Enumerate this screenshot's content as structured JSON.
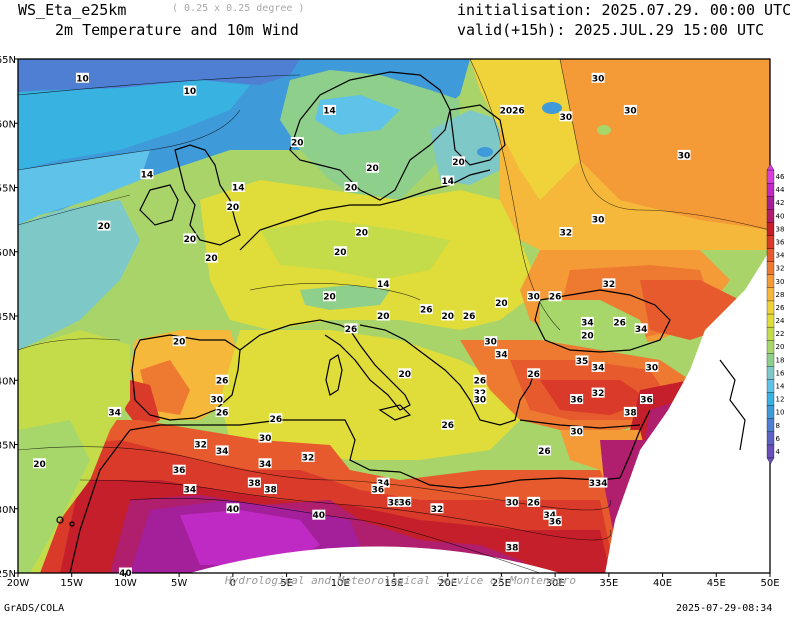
{
  "header": {
    "model": "WS_Eta_e25km",
    "resolution": "( 0.25 x 0.25 degree )",
    "variable": "2m Temperature and 10m Wind",
    "initialisation": "initialisation: 2025.07.29. 00:00 UTC",
    "valid": "valid(+15h): 2025.JUL.29 15:00 UTC"
  },
  "footer": {
    "software": "GrADS/COLA",
    "timestamp": "2025-07-29-08:34",
    "credit": "Hydrological and Meteorological Service of Montenegro"
  },
  "map": {
    "lon_ticks": [
      "20W",
      "15W",
      "10W",
      "5W",
      "0",
      "5E",
      "10E",
      "15E",
      "20E",
      "25E",
      "30E",
      "35E",
      "40E",
      "45E",
      "50E"
    ],
    "lat_ticks": [
      "25N",
      "30N",
      "35N",
      "40N",
      "45N",
      "50N",
      "55N",
      "60N",
      "65N"
    ],
    "contour_labels": [
      {
        "v": "10",
        "lon": -14,
        "lat": 63.5
      },
      {
        "v": "10",
        "lon": -4,
        "lat": 62.5
      },
      {
        "v": "14",
        "lon": -8,
        "lat": 56
      },
      {
        "v": "14",
        "lon": 0.5,
        "lat": 55
      },
      {
        "v": "20",
        "lon": -12,
        "lat": 52
      },
      {
        "v": "20",
        "lon": 0,
        "lat": 53.5
      },
      {
        "v": "20",
        "lon": -4,
        "lat": 51
      },
      {
        "v": "20",
        "lon": -2,
        "lat": 49.5
      },
      {
        "v": "14",
        "lon": 9,
        "lat": 61
      },
      {
        "v": "20",
        "lon": 6,
        "lat": 58.5
      },
      {
        "v": "20",
        "lon": 13,
        "lat": 56.5
      },
      {
        "v": "20",
        "lon": 11,
        "lat": 55
      },
      {
        "v": "14",
        "lon": 20,
        "lat": 55.5
      },
      {
        "v": "20",
        "lon": 21,
        "lat": 57
      },
      {
        "v": "2026",
        "lon": 26,
        "lat": 61
      },
      {
        "v": "30",
        "lon": 31,
        "lat": 60.5
      },
      {
        "v": "30",
        "lon": 34,
        "lat": 63.5
      },
      {
        "v": "30",
        "lon": 37,
        "lat": 61
      },
      {
        "v": "30",
        "lon": 42,
        "lat": 57.5
      },
      {
        "v": "30",
        "lon": 34,
        "lat": 52.5
      },
      {
        "v": "32",
        "lon": 31,
        "lat": 51.5
      },
      {
        "v": "20",
        "lon": 12,
        "lat": 51.5
      },
      {
        "v": "20",
        "lon": 10,
        "lat": 50
      },
      {
        "v": "14",
        "lon": 14,
        "lat": 47.5
      },
      {
        "v": "20",
        "lon": 9,
        "lat": 46.5
      },
      {
        "v": "20",
        "lon": 14,
        "lat": 45
      },
      {
        "v": "26",
        "lon": 11,
        "lat": 44
      },
      {
        "v": "26",
        "lon": 18,
        "lat": 45.5
      },
      {
        "v": "20",
        "lon": 20,
        "lat": 45
      },
      {
        "v": "26",
        "lon": 22,
        "lat": 45
      },
      {
        "v": "20",
        "lon": 25,
        "lat": 46
      },
      {
        "v": "30",
        "lon": 28,
        "lat": 46.5
      },
      {
        "v": "26",
        "lon": 30,
        "lat": 46.5
      },
      {
        "v": "32",
        "lon": 35,
        "lat": 47.5
      },
      {
        "v": "34",
        "lon": 33,
        "lat": 44.5
      },
      {
        "v": "20",
        "lon": 33,
        "lat": 43.5
      },
      {
        "v": "26",
        "lon": 36,
        "lat": 44.5
      },
      {
        "v": "34",
        "lon": 38,
        "lat": 44
      },
      {
        "v": "30",
        "lon": 24,
        "lat": 43
      },
      {
        "v": "34",
        "lon": 25,
        "lat": 42
      },
      {
        "v": "35",
        "lon": 32.5,
        "lat": 41.5
      },
      {
        "v": "34",
        "lon": 34,
        "lat": 41
      },
      {
        "v": "30",
        "lon": 39,
        "lat": 41
      },
      {
        "v": "26",
        "lon": 28,
        "lat": 40.5
      },
      {
        "v": "26",
        "lon": 23,
        "lat": 40
      },
      {
        "v": "32",
        "lon": 23,
        "lat": 39
      },
      {
        "v": "30",
        "lon": 23,
        "lat": 38.5
      },
      {
        "v": "36",
        "lon": 32,
        "lat": 38.5
      },
      {
        "v": "32",
        "lon": 34,
        "lat": 39
      },
      {
        "v": "38",
        "lon": 37,
        "lat": 37.5
      },
      {
        "v": "36",
        "lon": 38.5,
        "lat": 38.5
      },
      {
        "v": "30",
        "lon": 32,
        "lat": 36
      },
      {
        "v": "26",
        "lon": 29,
        "lat": 34.5
      },
      {
        "v": "20",
        "lon": 16,
        "lat": 40.5
      },
      {
        "v": "26",
        "lon": 20,
        "lat": 36.5
      },
      {
        "v": "20",
        "lon": -5,
        "lat": 43
      },
      {
        "v": "26",
        "lon": -1,
        "lat": 40
      },
      {
        "v": "30",
        "lon": -1.5,
        "lat": 38.5
      },
      {
        "v": "26",
        "lon": -1,
        "lat": 37.5
      },
      {
        "v": "34",
        "lon": -11,
        "lat": 37.5
      },
      {
        "v": "26",
        "lon": 4,
        "lat": 37
      },
      {
        "v": "30",
        "lon": 3,
        "lat": 35.5
      },
      {
        "v": "32",
        "lon": -3,
        "lat": 35
      },
      {
        "v": "34",
        "lon": -1,
        "lat": 34.5
      },
      {
        "v": "34",
        "lon": 3,
        "lat": 33.5
      },
      {
        "v": "32",
        "lon": 7,
        "lat": 34
      },
      {
        "v": "36",
        "lon": -5,
        "lat": 33
      },
      {
        "v": "38",
        "lon": 2,
        "lat": 32
      },
      {
        "v": "38",
        "lon": 3.5,
        "lat": 31.5
      },
      {
        "v": "34",
        "lon": -4,
        "lat": 31.5
      },
      {
        "v": "34",
        "lon": 14,
        "lat": 32
      },
      {
        "v": "36",
        "lon": 13.5,
        "lat": 31.5
      },
      {
        "v": "38",
        "lon": 15,
        "lat": 30.5
      },
      {
        "v": "36",
        "lon": 16,
        "lat": 30.5
      },
      {
        "v": "32",
        "lon": 19,
        "lat": 30
      },
      {
        "v": "30",
        "lon": 26,
        "lat": 30.5
      },
      {
        "v": "26",
        "lon": 28,
        "lat": 30.5
      },
      {
        "v": "34",
        "lon": 29.5,
        "lat": 29.5
      },
      {
        "v": "36",
        "lon": 30,
        "lat": 29
      },
      {
        "v": "334",
        "lon": 34,
        "lat": 32
      },
      {
        "v": "40",
        "lon": 0,
        "lat": 30
      },
      {
        "v": "40",
        "lon": 8,
        "lat": 29.5
      },
      {
        "v": "38",
        "lon": 26,
        "lat": 27
      },
      {
        "v": "20",
        "lon": -18,
        "lat": 33.5
      },
      {
        "v": "40",
        "lon": -10,
        "lat": 25
      }
    ]
  },
  "colorbar": {
    "labels": [
      "4",
      "6",
      "8",
      "10",
      "12",
      "14",
      "16",
      "18",
      "20",
      "22",
      "24",
      "26",
      "28",
      "30",
      "32",
      "34",
      "36",
      "38",
      "40",
      "42",
      "44",
      "46"
    ],
    "colors": [
      "#6a4fb8",
      "#5c63c4",
      "#4f7fd3",
      "#3f9ad9",
      "#38b2e0",
      "#5fc2e8",
      "#7ec8c8",
      "#8fcf8c",
      "#a7d66a",
      "#c4dc4a",
      "#e0dc3a",
      "#f0d23a",
      "#f5b83a",
      "#f49a36",
      "#ee7a32",
      "#e65a2e",
      "#d93a2a",
      "#c41f2a",
      "#b01e6e",
      "#a4209a",
      "#c02ac4",
      "#d440d8"
    ]
  }
}
